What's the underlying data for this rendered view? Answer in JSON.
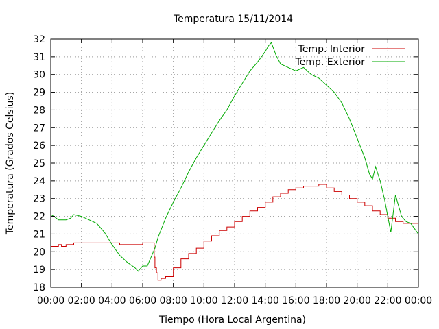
{
  "chart_data": {
    "type": "line",
    "title": "Temperatura 15/11/2014",
    "xlabel": "Tiempo (Hora Local Argentina)",
    "ylabel": "Temperatura (Grados Celsius)",
    "xlim": [
      0,
      24
    ],
    "ylim": [
      18,
      32
    ],
    "grid": true,
    "legend_position": "top-right",
    "x_tick_labels": [
      "00:00",
      "02:00",
      "04:00",
      "06:00",
      "08:00",
      "10:00",
      "12:00",
      "14:00",
      "16:00",
      "18:00",
      "20:00",
      "22:00",
      "00:00"
    ],
    "y_ticks": [
      18,
      19,
      20,
      21,
      22,
      23,
      24,
      25,
      26,
      27,
      28,
      29,
      30,
      31,
      32
    ],
    "series": [
      {
        "name": "Temp. Interior",
        "color": "#cc0000",
        "step": true,
        "x": [
          0,
          0.5,
          0.7,
          1,
          1.5,
          2.5,
          3,
          3.5,
          4.5,
          5,
          5.5,
          6,
          6.5,
          6.7,
          6.75,
          6.8,
          6.9,
          7,
          7.2,
          7.5,
          8,
          8.5,
          9,
          9.5,
          10,
          10.5,
          11,
          11.5,
          12,
          12.5,
          13,
          13.5,
          14,
          14.5,
          15,
          15.5,
          16,
          16.5,
          17,
          17.5,
          18,
          18.5,
          19,
          19.5,
          20,
          20.5,
          21,
          21.5,
          22,
          22.5,
          23,
          23.5,
          24
        ],
        "y": [
          20.3,
          20.4,
          20.3,
          20.4,
          20.5,
          20.5,
          20.5,
          20.5,
          20.4,
          20.4,
          20.4,
          20.5,
          20.5,
          20.5,
          19.7,
          19.1,
          18.8,
          18.4,
          18.5,
          18.6,
          19.1,
          19.6,
          19.9,
          20.2,
          20.6,
          20.9,
          21.2,
          21.4,
          21.7,
          22.0,
          22.3,
          22.5,
          22.8,
          23.1,
          23.3,
          23.5,
          23.6,
          23.7,
          23.7,
          23.8,
          23.6,
          23.4,
          23.2,
          23.0,
          22.8,
          22.6,
          22.3,
          22.1,
          21.9,
          21.7,
          21.6,
          21.6,
          21.2
        ]
      },
      {
        "name": "Temp. Exterior",
        "color": "#00aa00",
        "step": false,
        "x": [
          0,
          0.2,
          0.5,
          1,
          1.3,
          1.5,
          2,
          2.5,
          3,
          3.5,
          4,
          4.5,
          5,
          5.5,
          5.7,
          6,
          6.3,
          6.5,
          6.8,
          7,
          7.5,
          8,
          8.5,
          9,
          9.5,
          10,
          10.5,
          11,
          11.5,
          12,
          12.5,
          13,
          13.5,
          14,
          14.2,
          14.4,
          14.7,
          15,
          15.5,
          16,
          16.5,
          17,
          17.5,
          18,
          18.5,
          19,
          19.5,
          20,
          20.5,
          20.8,
          21,
          21.2,
          21.5,
          21.8,
          22,
          22.2,
          22.5,
          22.7,
          22.9,
          23.2,
          23.5,
          24
        ],
        "y": [
          22.1,
          22.0,
          21.8,
          21.8,
          21.9,
          22.1,
          22.0,
          21.8,
          21.6,
          21.1,
          20.4,
          19.8,
          19.4,
          19.1,
          18.9,
          19.2,
          19.2,
          19.6,
          20.2,
          20.8,
          21.9,
          22.8,
          23.6,
          24.5,
          25.3,
          26.0,
          26.7,
          27.4,
          28.0,
          28.8,
          29.5,
          30.2,
          30.7,
          31.3,
          31.6,
          31.8,
          31.1,
          30.6,
          30.4,
          30.2,
          30.4,
          30.0,
          29.8,
          29.4,
          29.0,
          28.4,
          27.5,
          26.4,
          25.3,
          24.4,
          24.1,
          24.8,
          24.0,
          22.9,
          22.0,
          21.1,
          23.2,
          22.6,
          22.0,
          21.7,
          21.6,
          21.0
        ]
      }
    ]
  }
}
